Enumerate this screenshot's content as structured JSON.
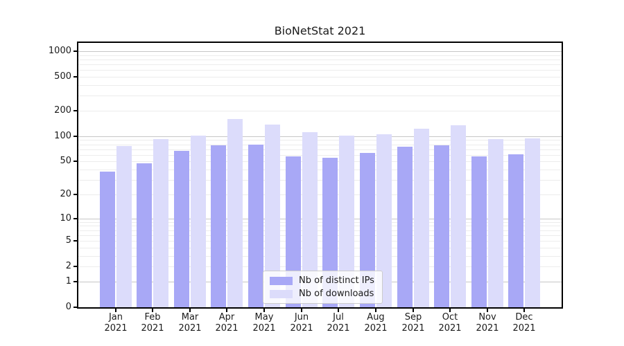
{
  "chart_data": {
    "type": "bar",
    "title": "BioNetStat 2021",
    "year_label": "2021",
    "months": [
      "Jan",
      "Feb",
      "Mar",
      "Apr",
      "May",
      "Jun",
      "Jul",
      "Aug",
      "Sep",
      "Oct",
      "Nov",
      "Dec"
    ],
    "series": [
      {
        "name": "Nb of distinct IPs",
        "color": "#a8a8f6",
        "values": [
          38,
          48,
          67,
          78,
          80,
          58,
          55,
          63,
          75,
          78,
          58,
          61
        ]
      },
      {
        "name": "Nb of downloads",
        "color": "#dcdcfb",
        "values": [
          76,
          93,
          101,
          160,
          137,
          112,
          102,
          106,
          123,
          136,
          92,
          94
        ]
      }
    ],
    "y_ticks": [
      0,
      1,
      2,
      5,
      10,
      20,
      50,
      100,
      200,
      500,
      1000
    ],
    "scale": "log1p",
    "ylim": [
      0,
      1000
    ],
    "grid": {
      "major_color": "#c6c6c6",
      "minor_color": "#ececec"
    },
    "legend_position": "lower center",
    "axis_color": "#000000",
    "text_color": "#1a1a1a"
  }
}
